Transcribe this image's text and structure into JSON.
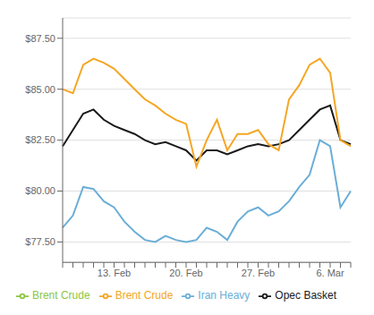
{
  "chart_data": {
    "type": "line",
    "categories": [
      null,
      null,
      null,
      null,
      null,
      "13. Feb",
      null,
      null,
      null,
      null,
      null,
      null,
      "20. Feb",
      null,
      null,
      null,
      null,
      null,
      null,
      "27. Feb",
      null,
      null,
      null,
      null,
      null,
      null,
      "6. Mar",
      null,
      null
    ],
    "series": [
      {
        "name": "Iran Heavy",
        "color": "#6baed6",
        "values": [
          78.2,
          78.8,
          80.2,
          80.1,
          79.5,
          79.2,
          78.5,
          78.0,
          77.6,
          77.5,
          77.8,
          77.6,
          77.5,
          77.6,
          78.2,
          78.0,
          77.6,
          78.5,
          79.0,
          79.2,
          78.8,
          79.0,
          79.5,
          80.2,
          80.8,
          82.5,
          82.2,
          79.2,
          80.0
        ]
      },
      {
        "name": "Opec Basket",
        "color": "#1a1a1a",
        "values": [
          82.2,
          83.0,
          83.8,
          84.0,
          83.5,
          83.2,
          83.0,
          82.8,
          82.5,
          82.3,
          82.4,
          82.2,
          82.0,
          81.5,
          82.0,
          82.0,
          81.8,
          82.0,
          82.2,
          82.3,
          82.2,
          82.3,
          82.5,
          83.0,
          83.5,
          84.0,
          84.2,
          82.5,
          82.3
        ]
      },
      {
        "name": "Brent Crude",
        "color": "#8dc63f",
        "values": [
          null,
          null,
          null,
          null,
          null,
          null,
          null,
          null,
          null,
          null,
          null,
          null,
          null,
          null,
          null,
          null,
          null,
          null,
          null,
          null,
          null,
          null,
          null,
          null,
          null,
          null,
          null,
          null,
          null
        ]
      },
      {
        "name": "Brent Crude",
        "color": "#f5a623",
        "values": [
          85.0,
          84.8,
          86.2,
          86.5,
          86.3,
          86.0,
          85.5,
          85.0,
          84.5,
          84.2,
          83.8,
          83.5,
          83.3,
          81.2,
          82.5,
          83.5,
          82.0,
          82.8,
          82.8,
          83.0,
          82.3,
          82.0,
          84.5,
          85.2,
          86.2,
          86.5,
          85.8,
          82.5,
          82.2
        ]
      }
    ],
    "ylim": [
      76.5,
      88.5
    ],
    "yticks": [
      {
        "value": 77.5,
        "label": "$77.50"
      },
      {
        "value": 80.0,
        "label": "$80.00"
      },
      {
        "value": 82.5,
        "label": "$82.50"
      },
      {
        "value": 85.0,
        "label": "$85.00"
      },
      {
        "value": 87.5,
        "label": "$87.50"
      }
    ],
    "grid": true,
    "legend": "bottom"
  }
}
